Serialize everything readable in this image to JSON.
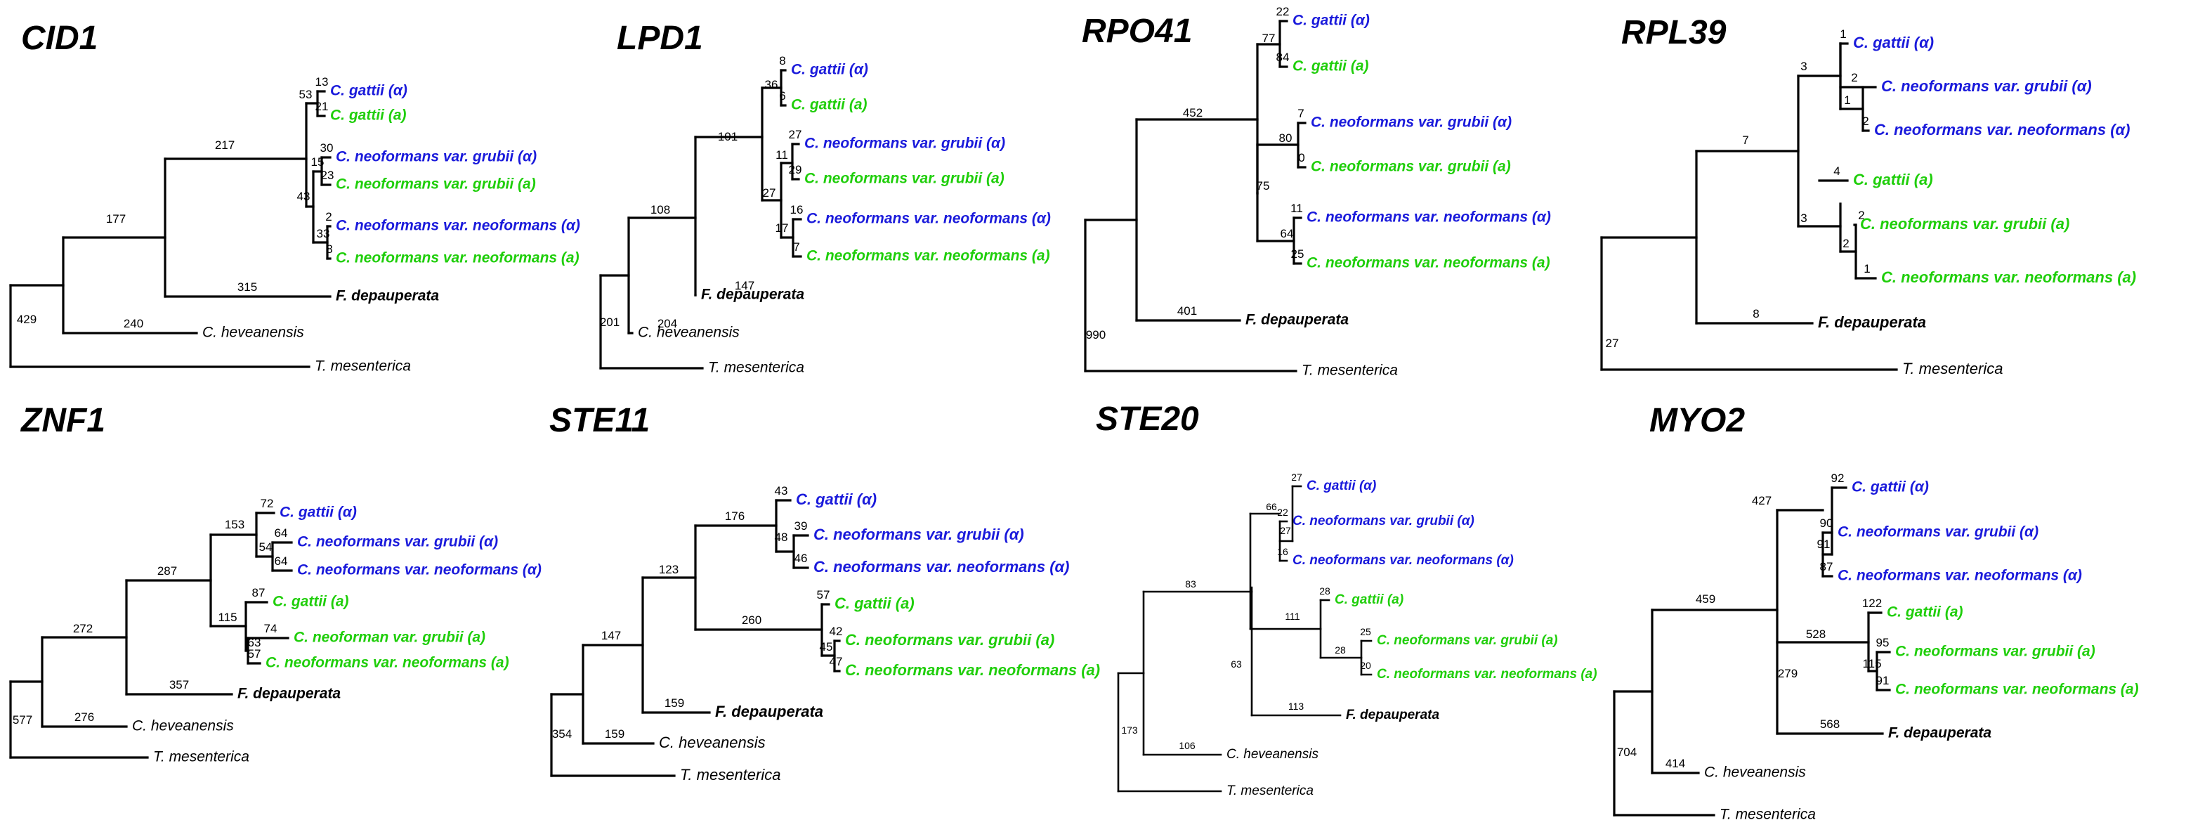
{
  "colors": {
    "alpha": "#1a1adb",
    "a": "#1fce0a",
    "outgroup": "#000000"
  },
  "tree_titles": [
    "CID1",
    "LPD1",
    "RPO41",
    "RPL39",
    "ZNF1",
    "STE11",
    "STE20",
    "MYO2"
  ],
  "trees": [
    {
      "title": "CID1",
      "leaves": [
        {
          "name": "C. gattii (α)",
          "group": "alpha",
          "bl": "13"
        },
        {
          "name": "C. gattii (a)",
          "group": "a",
          "bl": "21"
        },
        {
          "name": "C. neoformans var.  grubii (α)",
          "group": "alpha",
          "bl": "30"
        },
        {
          "name": "C. neoformans var. grubii (a)",
          "group": "a",
          "bl": "23"
        },
        {
          "name": "C. neoformans var. neoformans (α)",
          "group": "alpha",
          "bl": "2"
        },
        {
          "name": "C. neoformans var. neoformans (a)",
          "group": "a",
          "bl": "8"
        },
        {
          "name": "F. depauperata",
          "group": "outgroup",
          "bl": "315"
        },
        {
          "name": "C. heveanensis",
          "group": "other",
          "bl": "240"
        },
        {
          "name": "T. mesenterica",
          "group": "other",
          "bl": ""
        }
      ],
      "internal": [
        "53",
        "15",
        "33",
        "43",
        "217",
        "177",
        "429"
      ]
    },
    {
      "title": "LPD1",
      "leaves": [
        {
          "name": "C. gattii (α)",
          "group": "alpha",
          "bl": "8"
        },
        {
          "name": "C. gattii (a)",
          "group": "a",
          "bl": "6"
        },
        {
          "name": "C. neoformans var. grubii (α)",
          "group": "alpha",
          "bl": "27"
        },
        {
          "name": "C. neoformans var. grubii (a)",
          "group": "a",
          "bl": "29"
        },
        {
          "name": "C. neoformans var. neoformans (α)",
          "group": "alpha",
          "bl": "16"
        },
        {
          "name": "C. neoformans var. neoformans (a)",
          "group": "a",
          "bl": "7"
        },
        {
          "name": "F. depauperata",
          "group": "outgroup",
          "bl": "147"
        },
        {
          "name": "C. heveanensis",
          "group": "other",
          "bl": "204"
        },
        {
          "name": "T. mesenterica",
          "group": "other",
          "bl": ""
        }
      ],
      "internal": [
        "36",
        "11",
        "17",
        "27",
        "101",
        "108",
        "201"
      ]
    },
    {
      "title": "RPO41",
      "leaves": [
        {
          "name": "C. gattii (α)",
          "group": "alpha",
          "bl": "22"
        },
        {
          "name": "C. gattii (a)",
          "group": "a",
          "bl": "84"
        },
        {
          "name": "C. neoformans var. grubii (α)",
          "group": "alpha",
          "bl": "7"
        },
        {
          "name": "C. neoformans var. grubii (a)",
          "group": "a",
          "bl": "0"
        },
        {
          "name": "C. neoformans var. neoformans (α)",
          "group": "alpha",
          "bl": "11"
        },
        {
          "name": "C. neoformans var. neoformans (a)",
          "group": "a",
          "bl": "25"
        },
        {
          "name": "F. depauperata",
          "group": "outgroup",
          "bl": "401"
        },
        {
          "name": "T. mesenterica",
          "group": "other",
          "bl": ""
        }
      ],
      "internal": [
        "77",
        "80",
        "64",
        "75",
        "452",
        "990"
      ]
    },
    {
      "title": "RPL39",
      "leaves": [
        {
          "name": "C. gattii (α)",
          "group": "alpha",
          "bl": "1"
        },
        {
          "name": "C. neoformans var. grubii (α)",
          "group": "alpha",
          "bl": "2"
        },
        {
          "name": "C. neoformans var. neoformans (α)",
          "group": "alpha",
          "bl": "2"
        },
        {
          "name": "C. gattii (a)",
          "group": "a",
          "bl": "4"
        },
        {
          "name": "C. neoformans var. grubii (a)",
          "group": "a",
          "bl": "2"
        },
        {
          "name": "C. neoformans var. neoformans (a)",
          "group": "a",
          "bl": "1"
        },
        {
          "name": "F. depauperata",
          "group": "outgroup",
          "bl": "8"
        },
        {
          "name": "T. mesenterica",
          "group": "other",
          "bl": ""
        }
      ],
      "internal": [
        "1",
        "3",
        "2",
        "3",
        "7",
        "27"
      ]
    },
    {
      "title": "ZNF1",
      "leaves": [
        {
          "name": "C. gattii (α)",
          "group": "alpha",
          "bl": "72"
        },
        {
          "name": "C. neoformans var. grubii (α)",
          "group": "alpha",
          "bl": "64"
        },
        {
          "name": "C. neoformans var. neoformans (α)",
          "group": "alpha",
          "bl": "64"
        },
        {
          "name": "C. gattii (a)",
          "group": "a",
          "bl": "87"
        },
        {
          "name": "C. neoforman var. grubii (a)",
          "group": "a",
          "bl": "74"
        },
        {
          "name": "C. neoformans var. neoformans (a)",
          "group": "a",
          "bl": "57"
        },
        {
          "name": "F. depauperata",
          "group": "outgroup",
          "bl": "357"
        },
        {
          "name": "C. heveanensis",
          "group": "other",
          "bl": "276"
        },
        {
          "name": "T. mesenterica",
          "group": "other",
          "bl": ""
        }
      ],
      "internal": [
        "54",
        "153",
        "63",
        "115",
        "287",
        "272",
        "577"
      ]
    },
    {
      "title": "STE11",
      "leaves": [
        {
          "name": "C. gattii (α)",
          "group": "alpha",
          "bl": "43"
        },
        {
          "name": "C. neoformans var. grubii (α)",
          "group": "alpha",
          "bl": "39"
        },
        {
          "name": "C. neoformans var. neoformans (α)",
          "group": "alpha",
          "bl": "46"
        },
        {
          "name": "C. gattii (a)",
          "group": "a",
          "bl": "57"
        },
        {
          "name": "C. neoformans var. grubii (a)",
          "group": "a",
          "bl": "42"
        },
        {
          "name": "C. neoformans var. neoformans (a)",
          "group": "a",
          "bl": "47"
        },
        {
          "name": "F. depauperata",
          "group": "outgroup",
          "bl": "159"
        },
        {
          "name": "C. heveanensis",
          "group": "other",
          "bl": "159"
        },
        {
          "name": "T. mesenterica",
          "group": "other",
          "bl": ""
        }
      ],
      "internal": [
        "48",
        "176",
        "45",
        "260",
        "123",
        "147",
        "354"
      ]
    },
    {
      "title": "STE20",
      "leaves": [
        {
          "name": "C. gattii (α)",
          "group": "alpha",
          "bl": "27"
        },
        {
          "name": "C. neoformans var. grubii (α)",
          "group": "alpha",
          "bl": "22"
        },
        {
          "name": "C. neoformans var. neoformans (α)",
          "group": "alpha",
          "bl": "16"
        },
        {
          "name": "C. gattii (a)",
          "group": "a",
          "bl": "28"
        },
        {
          "name": "C. neoformans var. grubii (a)",
          "group": "a",
          "bl": "25"
        },
        {
          "name": "C. neoformans var. neoformans (a)",
          "group": "a",
          "bl": "20"
        },
        {
          "name": "F. depauperata",
          "group": "outgroup",
          "bl": "113"
        },
        {
          "name": "C. heveanensis",
          "group": "other",
          "bl": "106"
        },
        {
          "name": "T. mesenterica",
          "group": "other",
          "bl": ""
        }
      ],
      "internal": [
        "27",
        "66",
        "28",
        "111",
        "63",
        "83",
        "173"
      ]
    },
    {
      "title": "MYO2",
      "leaves": [
        {
          "name": "C. gattii (α)",
          "group": "alpha",
          "bl": "92"
        },
        {
          "name": "C. neoformans var. grubii (α)",
          "group": "alpha",
          "bl": "90"
        },
        {
          "name": "C. neoformans var. neoformans (α)",
          "group": "alpha",
          "bl": "87"
        },
        {
          "name": "C. gattii (a)",
          "group": "a",
          "bl": "122"
        },
        {
          "name": "C. neoformans var. grubii (a)",
          "group": "a",
          "bl": "95"
        },
        {
          "name": "C. neoformans var. neoformans (a)",
          "group": "a",
          "bl": "91"
        },
        {
          "name": "F. depauperata",
          "group": "outgroup",
          "bl": "568"
        },
        {
          "name": "C. heveanensis",
          "group": "other",
          "bl": "414"
        },
        {
          "name": "T. mesenterica",
          "group": "other",
          "bl": ""
        }
      ],
      "internal": [
        "91",
        "427",
        "115",
        "528",
        "279",
        "459",
        "704"
      ]
    }
  ]
}
